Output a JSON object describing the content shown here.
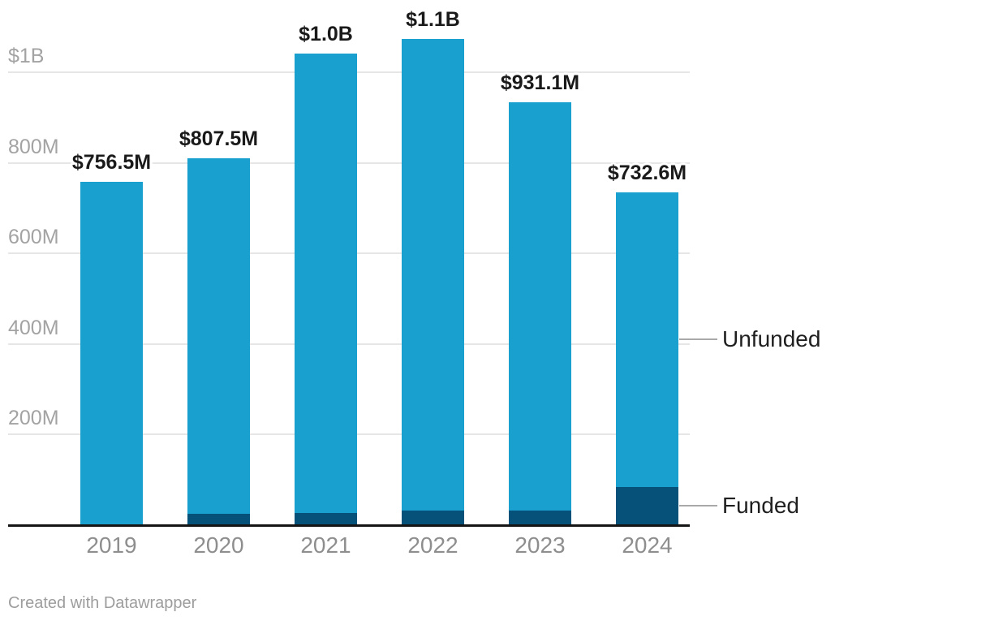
{
  "chart_data": {
    "type": "bar",
    "stacked": true,
    "title": "",
    "categories": [
      "2019",
      "2020",
      "2021",
      "2022",
      "2023",
      "2024"
    ],
    "series": [
      {
        "name": "Funded",
        "color": "#05517a",
        "values": [
          0,
          23,
          25,
          30,
          31,
          82
        ]
      },
      {
        "name": "Unfunded",
        "color": "#19a0ce",
        "values": [
          756.5,
          784.5,
          1015,
          1042,
          900.1,
          650.6
        ]
      }
    ],
    "totals": [
      756.5,
      807.5,
      1040,
      1072,
      931.1,
      732.6
    ],
    "total_labels": [
      "$756.5M",
      "$807.5M",
      "$1.0B",
      "$1.1B",
      "$931.1M",
      "$732.6M"
    ],
    "unit": "USD millions",
    "y_axis": {
      "ticks": [
        {
          "value": 200,
          "label": "200M"
        },
        {
          "value": 400,
          "label": "400M"
        },
        {
          "value": 600,
          "label": "600M"
        },
        {
          "value": 800,
          "label": "800M"
        },
        {
          "value": 1000,
          "label": "$1B"
        }
      ],
      "range": [
        0,
        1160
      ]
    },
    "grid": true,
    "legend": {
      "position": "right",
      "entries": [
        "Unfunded",
        "Funded"
      ]
    }
  },
  "footer": {
    "credit": "Created with Datawrapper"
  },
  "colors": {
    "unfunded": "#19a0ce",
    "funded": "#05517a",
    "gridline": "#e6e6e6",
    "axis_line": "#151515",
    "y_tick_text": "#a3a3a3",
    "x_tick_text": "#8e8e8e",
    "value_label_text": "#1a1a1a",
    "legend_text": "#1f1f1f",
    "legend_line": "#a9a9a9",
    "credit_text": "#9d9d9d",
    "background": "#ffffff"
  }
}
